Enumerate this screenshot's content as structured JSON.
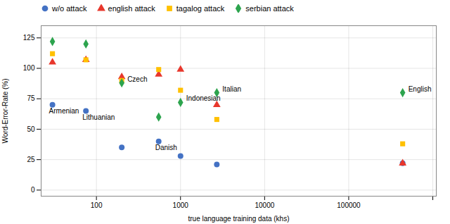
{
  "chart_data": {
    "type": "scatter",
    "xlabel": "true language training data (khs)",
    "ylabel": "Word-Error-Rate (%)",
    "log": "x",
    "grid": true,
    "legend": "upper left",
    "x": [
      30,
      75,
      200,
      550,
      1000,
      2700,
      438000
    ],
    "series": [
      {
        "name": "w/o attack",
        "color": "#4472C4",
        "marker": "circle",
        "values": [
          70,
          65,
          35,
          40,
          28,
          21,
          22
        ]
      },
      {
        "name": "english attack",
        "color": "#E8372C",
        "marker": "triangle",
        "values": [
          105,
          107,
          93,
          95,
          99,
          70,
          22
        ]
      },
      {
        "name": "tagalog attack",
        "color": "#FFC000",
        "marker": "square",
        "values": [
          112,
          107,
          90,
          99,
          82,
          58,
          38
        ]
      },
      {
        "name": "serbian attack",
        "color": "#2DA44E",
        "marker": "diamond",
        "values": [
          122,
          120,
          88,
          60,
          72,
          80,
          80
        ]
      }
    ],
    "annotations": [
      {
        "text": "Armenian",
        "x": 30,
        "y": 70
      },
      {
        "text": "Lithuanian",
        "x": 75,
        "y": 65
      },
      {
        "text": "Czech",
        "x": 200,
        "y": 88
      },
      {
        "text": "Danish",
        "x": 550,
        "y": 40
      },
      {
        "text": "Indonesian",
        "x": 1000,
        "y": 72
      },
      {
        "text": "Italian",
        "x": 2700,
        "y": 80
      },
      {
        "text": "English",
        "x": 438000,
        "y": 80
      }
    ],
    "xlim": [
      22,
      1100000
    ],
    "xticks": [
      100,
      1000,
      10000,
      100000,
      {
        "value": 1000000,
        "label": null
      }
    ],
    "ylim": [
      -5,
      135
    ],
    "yticks": [
      0,
      25,
      50,
      75,
      100,
      125
    ]
  }
}
